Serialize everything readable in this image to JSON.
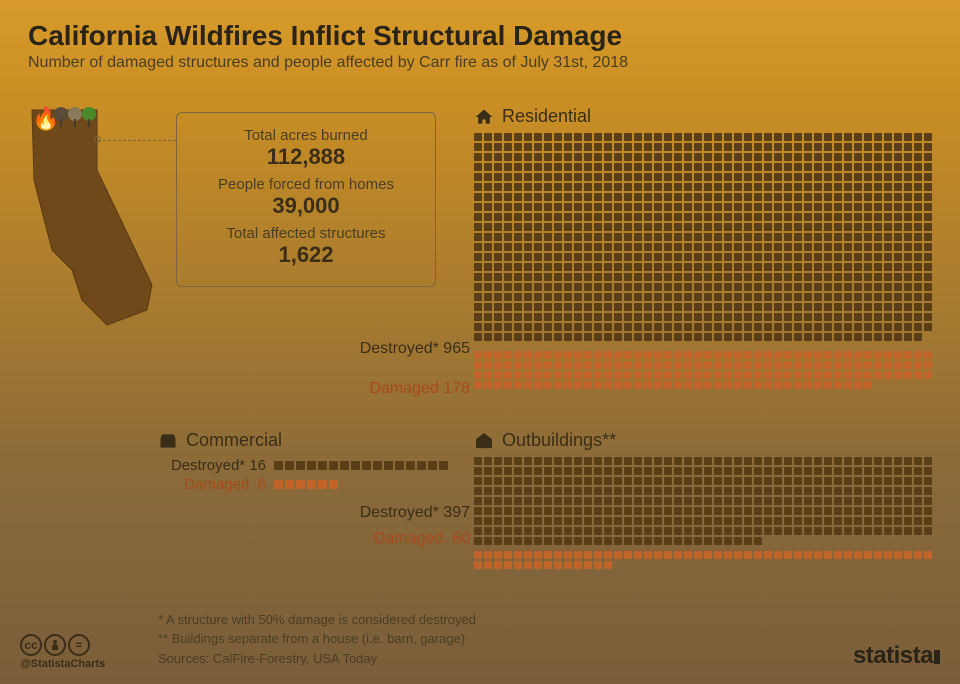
{
  "header": {
    "title": "California Wildfires Inflict Structural Damage",
    "subtitle": "Number of damaged structures and people affected by Carr fire as of July 31st, 2018"
  },
  "stats": [
    {
      "label": "Total acres burned",
      "value": "112,888"
    },
    {
      "label": "People forced from homes",
      "value": "39,000"
    },
    {
      "label": "Total affected structures",
      "value": "1,622"
    }
  ],
  "colors": {
    "destroyed": "#5a3e18",
    "damaged": "#c2632a",
    "label_destroyed": "#3a2e18",
    "label_damaged": "#a84a1a",
    "map_fill": "#70491a",
    "box_border": "#7a6640"
  },
  "residential": {
    "title": "Residential",
    "destroyed_label": "Destroyed*",
    "destroyed_value": 965,
    "damaged_label": "Damaged",
    "damaged_value": 178,
    "cols": 46
  },
  "commercial": {
    "title": "Commercial",
    "destroyed_label": "Destroyed*",
    "destroyed_value": 16,
    "damaged_label": "Damaged",
    "damaged_value": 6
  },
  "outbuildings": {
    "title": "Outbuildings**",
    "destroyed_label": "Destroyed*",
    "destroyed_value": 397,
    "damaged_label": "Damaged",
    "damaged_value": 60,
    "cols": 46
  },
  "footnotes": {
    "note1": "*   A structure with 50% damage is considered destroyed",
    "note2": "** Buildings separate from a house (i.e. barn, garage)",
    "sources": "Sources: CalFire-Forestry, USA Today"
  },
  "footer": {
    "handle": "@StatistaCharts",
    "brand": "statista"
  }
}
